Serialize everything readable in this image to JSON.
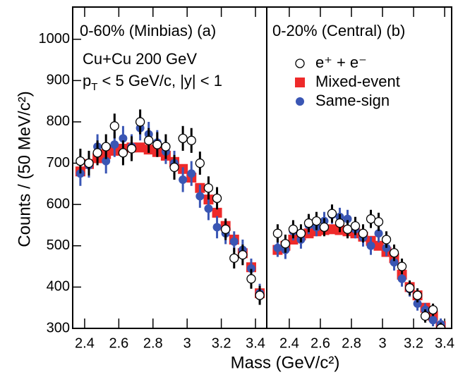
{
  "ylabel": "Counts / (50 MeV/c²)",
  "xlabel": "Mass (GeV/c²)",
  "chart_data": [
    {
      "type": "scatter",
      "annotations": [
        "0-60% (Minbias) (a)",
        "Cu+Cu 200 GeV",
        {
          "text": "p",
          "sub": "T",
          "tail": " < 5 GeV/c, |y| < 1"
        }
      ],
      "x": [
        2.375,
        2.425,
        2.475,
        2.525,
        2.575,
        2.625,
        2.675,
        2.725,
        2.775,
        2.825,
        2.875,
        2.925,
        2.975,
        3.025,
        3.075,
        3.125,
        3.175,
        3.225,
        3.275,
        3.325,
        3.375,
        3.425
      ],
      "xlim": [
        2.33,
        3.466
      ],
      "xticks": [
        2.4,
        2.6,
        2.8,
        3,
        3.2,
        3.4
      ],
      "ylim": [
        300,
        1078
      ],
      "yticks": [
        300,
        400,
        500,
        600,
        700,
        800,
        900,
        1000
      ],
      "series": [
        {
          "name": "e⁺ + e⁻",
          "marker": "open-circle",
          "color": "#000000",
          "values": [
            705,
            700,
            725,
            740,
            790,
            725,
            735,
            800,
            755,
            745,
            740,
            690,
            760,
            755,
            700,
            640,
            615,
            540,
            470,
            478,
            420,
            380
          ],
          "errors": [
            30,
            30,
            30,
            30,
            30,
            30,
            30,
            30,
            30,
            30,
            30,
            30,
            30,
            30,
            28,
            28,
            27,
            26,
            25,
            25,
            24,
            23
          ]
        },
        {
          "name": "Mixed-event",
          "marker": "square",
          "color": "#ee2a2a",
          "values": [
            680,
            698,
            712,
            722,
            730,
            735,
            738,
            738,
            733,
            727,
            718,
            703,
            686,
            665,
            640,
            612,
            580,
            548,
            515,
            482,
            448,
            385
          ]
        },
        {
          "name": "Same-sign",
          "marker": "circle",
          "color": "#3a56b4",
          "values": [
            675,
            695,
            740,
            705,
            745,
            760,
            740,
            785,
            770,
            750,
            728,
            700,
            660,
            675,
            620,
            590,
            545,
            530,
            510,
            490,
            445,
            385
          ],
          "errors": [
            30,
            30,
            30,
            30,
            30,
            30,
            30,
            30,
            30,
            30,
            30,
            30,
            30,
            30,
            28,
            28,
            27,
            26,
            25,
            25,
            24,
            23
          ]
        }
      ]
    },
    {
      "type": "scatter",
      "annotations": [
        "0-20% (Central)  (b)"
      ],
      "legend": "upper left",
      "x": [
        2.325,
        2.375,
        2.425,
        2.475,
        2.525,
        2.575,
        2.625,
        2.675,
        2.725,
        2.775,
        2.825,
        2.875,
        2.925,
        2.975,
        3.025,
        3.075,
        3.125,
        3.175,
        3.225,
        3.275,
        3.325,
        3.375
      ],
      "xlim": [
        2.255,
        3.445
      ],
      "xticks": [
        2.4,
        2.6,
        2.8,
        3,
        3.2,
        3.4
      ],
      "ylim": [
        300,
        1078
      ],
      "series": [
        {
          "name": "e⁺ + e⁻",
          "marker": "open-circle",
          "color": "#000000",
          "values": [
            530,
            505,
            540,
            530,
            555,
            560,
            545,
            578,
            555,
            540,
            548,
            530,
            565,
            558,
            515,
            483,
            450,
            398,
            380,
            330,
            345,
            300
          ],
          "errors": [
            22,
            22,
            22,
            22,
            22,
            22,
            22,
            22,
            22,
            22,
            22,
            22,
            22,
            22,
            20,
            20,
            19,
            18,
            17,
            16,
            15,
            14
          ]
        },
        {
          "name": "Mixed-event",
          "marker": "square",
          "color": "#ee2a2a",
          "values": [
            490,
            500,
            515,
            525,
            530,
            535,
            538,
            540,
            538,
            535,
            530,
            522,
            512,
            500,
            485,
            470,
            430,
            400,
            380,
            350,
            330,
            305
          ]
        },
        {
          "name": "Same-sign",
          "marker": "circle",
          "color": "#3a56b4",
          "values": [
            495,
            490,
            535,
            515,
            550,
            545,
            560,
            575,
            570,
            565,
            540,
            520,
            500,
            530,
            495,
            460,
            420,
            395,
            360,
            345,
            320,
            310
          ],
          "errors": [
            22,
            22,
            22,
            22,
            22,
            22,
            22,
            22,
            22,
            22,
            22,
            22,
            22,
            22,
            20,
            20,
            19,
            18,
            17,
            16,
            15,
            14
          ]
        }
      ]
    }
  ]
}
